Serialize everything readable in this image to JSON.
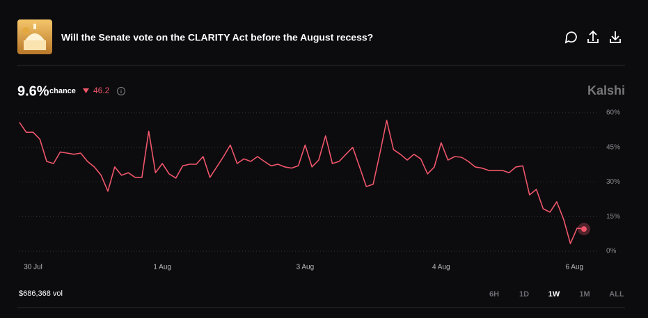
{
  "header": {
    "title": "Will the Senate vote on the CLARITY Act before the August recess?"
  },
  "summary": {
    "chance": "9.6%",
    "chance_label": "chance",
    "change": "46.2"
  },
  "brand": "Kalshi",
  "chart_data": {
    "type": "line",
    "color": "#f0566a",
    "x": [
      0,
      1,
      2,
      3,
      4,
      5,
      6,
      7,
      8,
      9,
      10,
      11,
      12,
      13,
      14,
      15,
      16,
      17,
      18,
      19,
      20,
      21,
      22,
      23,
      24,
      25,
      26,
      27,
      28,
      29,
      30,
      31,
      32,
      33,
      34,
      35,
      36,
      37,
      38,
      39,
      40,
      41,
      42,
      43,
      44,
      45,
      46,
      47,
      48,
      49,
      50,
      51,
      52,
      53,
      54,
      55,
      56,
      57,
      58,
      59,
      60,
      61,
      62,
      63,
      64,
      65,
      66,
      67,
      68,
      69,
      70,
      71,
      72,
      73,
      74,
      75,
      76,
      77,
      78,
      79,
      80,
      81,
      82,
      83
    ],
    "values": [
      55.8,
      51.5,
      51.6,
      48.5,
      38.9,
      38,
      43,
      42.5,
      42,
      42.5,
      38.9,
      36.5,
      32.9,
      26,
      36.5,
      32.9,
      34,
      32,
      32,
      52,
      34,
      38,
      33.5,
      31.7,
      37,
      37.7,
      37.7,
      41,
      32,
      36.5,
      41,
      46,
      38,
      40,
      38.9,
      41,
      38.9,
      37,
      37.7,
      36.5,
      36,
      37,
      46,
      36.5,
      39.5,
      50,
      38,
      38.9,
      42,
      45,
      36.5,
      28,
      29,
      42.5,
      56.7,
      44,
      42,
      39.5,
      42,
      40,
      33.5,
      36.5,
      47,
      39.5,
      41,
      40.7,
      38.9,
      36.5,
      36,
      35,
      35,
      35,
      34,
      36.5,
      37,
      24.4,
      26.8,
      18.4,
      16.9,
      21.4,
      13.9,
      3.3,
      10,
      9.6
    ],
    "xlim": [
      0,
      83
    ],
    "xticks": [
      {
        "value": 2,
        "label": "30 Jul"
      },
      {
        "value": 21,
        "label": "1 Aug"
      },
      {
        "value": 42,
        "label": "3 Aug"
      },
      {
        "value": 62,
        "label": "4 Aug"
      },
      {
        "value": 81.6,
        "label": "6 Aug"
      }
    ],
    "ylim": [
      0,
      60
    ],
    "yticks": [
      {
        "value": 0,
        "label": "0%"
      },
      {
        "value": 15,
        "label": "15%"
      },
      {
        "value": 30,
        "label": "30%"
      },
      {
        "value": 45,
        "label": "45%"
      },
      {
        "value": 60,
        "label": "60%"
      }
    ],
    "grid": true
  },
  "footer": {
    "volume": "$686,368 vol",
    "ranges": [
      "6H",
      "1D",
      "1W",
      "1M",
      "ALL"
    ],
    "selected": "1W"
  }
}
